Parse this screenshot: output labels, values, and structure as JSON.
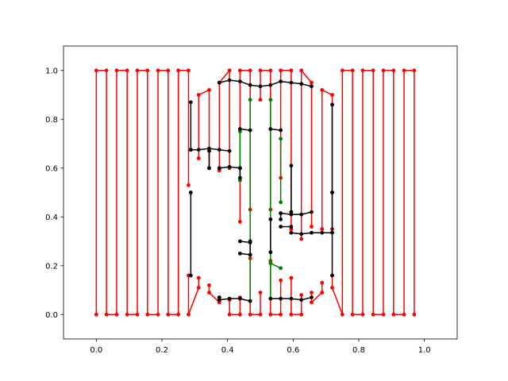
{
  "chart_data": {
    "type": "line",
    "title": "",
    "xlabel": "",
    "ylabel": "",
    "xlim": [
      -0.1,
      1.1
    ],
    "ylim": [
      -0.1,
      1.1
    ],
    "xticks": [
      "0.0",
      "0.2",
      "0.4",
      "0.6",
      "0.8",
      "1.0"
    ],
    "yticks": [
      "0.0",
      "0.2",
      "0.4",
      "0.6",
      "0.8",
      "1.0"
    ],
    "grid": false,
    "legend": "none",
    "marker": "circle",
    "colors": {
      "outer": "#ff0000",
      "inner": "#000000",
      "core": "#008000"
    },
    "outer_x": [
      0.0,
      0.031,
      0.062,
      0.094,
      0.125,
      0.156,
      0.188,
      0.219,
      0.25,
      0.281,
      0.312,
      0.344,
      0.375,
      0.406,
      0.438,
      0.469,
      0.5,
      0.531,
      0.562,
      0.594,
      0.625,
      0.656,
      0.688,
      0.719,
      0.75,
      0.781,
      0.812,
      0.844,
      0.875,
      0.906,
      0.938,
      0.969
    ],
    "outer_bottom": [
      0.0,
      0.0,
      0.0,
      0.0,
      0.0,
      0.0,
      0.0,
      0.0,
      0.0,
      0.0,
      0.11,
      0.09,
      0.05,
      0.0,
      0.0,
      0.0,
      0.0,
      0.0,
      0.0,
      0.0,
      0.0,
      0.05,
      0.09,
      0.11,
      0.0,
      0.0,
      0.0,
      0.0,
      0.0,
      0.0,
      0.0,
      0.0
    ],
    "outer_top": [
      1.0,
      1.0,
      1.0,
      1.0,
      1.0,
      1.0,
      1.0,
      1.0,
      1.0,
      1.0,
      0.9,
      0.92,
      0.95,
      1.0,
      1.0,
      1.0,
      1.0,
      1.0,
      1.0,
      1.0,
      1.0,
      0.95,
      0.92,
      0.9,
      1.0,
      1.0,
      1.0,
      1.0,
      1.0,
      1.0,
      1.0,
      1.0
    ],
    "outer_gaps": [
      [
        0.281,
        0.16,
        0.53
      ],
      [
        0.312,
        0.15,
        0.64
      ],
      [
        0.344,
        0.12,
        0.6
      ],
      [
        0.375,
        0.07,
        0.59
      ],
      [
        0.406,
        0.06,
        0.6
      ],
      [
        0.438,
        0.07,
        0.38
      ],
      [
        0.469,
        0.23,
        0.43
      ],
      [
        0.5,
        0.09,
        0.88
      ],
      [
        0.531,
        0.22,
        0.43
      ],
      [
        0.562,
        0.14,
        0.56
      ],
      [
        0.594,
        0.15,
        0.35
      ],
      [
        0.625,
        0.08,
        0.31
      ],
      [
        0.656,
        0.09,
        0.36
      ],
      [
        0.688,
        0.13,
        0.35
      ],
      [
        0.719,
        0.16,
        0.35
      ]
    ],
    "inner": [
      [
        [
          0.375,
          0.07
        ],
        [
          0.375,
          0.06
        ],
        [
          0.406,
          0.065
        ],
        [
          0.438,
          0.065
        ],
        [
          0.469,
          0.055
        ]
      ],
      [
        [
          0.531,
          0.065
        ],
        [
          0.562,
          0.065
        ],
        [
          0.594,
          0.065
        ],
        [
          0.625,
          0.06
        ],
        [
          0.656,
          0.07
        ]
      ],
      [
        [
          0.375,
          0.95
        ],
        [
          0.406,
          0.96
        ],
        [
          0.438,
          0.955
        ],
        [
          0.469,
          0.94
        ],
        [
          0.5,
          0.935
        ]
      ],
      [
        [
          0.5,
          0.935
        ],
        [
          0.531,
          0.94
        ],
        [
          0.562,
          0.955
        ],
        [
          0.594,
          0.95
        ],
        [
          0.625,
          0.945
        ],
        [
          0.656,
          0.935
        ]
      ],
      [
        [
          0.288,
          0.16
        ],
        [
          0.288,
          0.5
        ]
      ],
      [
        [
          0.288,
          0.675
        ],
        [
          0.288,
          0.87
        ]
      ],
      [
        [
          0.719,
          0.16
        ],
        [
          0.719,
          0.5
        ]
      ],
      [
        [
          0.719,
          0.5
        ],
        [
          0.719,
          0.86
        ]
      ],
      [
        [
          0.288,
          0.675
        ],
        [
          0.312,
          0.675
        ],
        [
          0.344,
          0.68
        ],
        [
          0.375,
          0.675
        ],
        [
          0.406,
          0.67
        ]
      ],
      [
        [
          0.375,
          0.6
        ],
        [
          0.406,
          0.605
        ],
        [
          0.438,
          0.6
        ]
      ],
      [
        [
          0.438,
          0.76
        ],
        [
          0.469,
          0.755
        ]
      ],
      [
        [
          0.531,
          0.76
        ],
        [
          0.562,
          0.755
        ]
      ],
      [
        [
          0.469,
          0.3
        ],
        [
          0.469,
          0.245
        ]
      ],
      [
        [
          0.438,
          0.3
        ],
        [
          0.469,
          0.295
        ]
      ],
      [
        [
          0.438,
          0.25
        ],
        [
          0.469,
          0.245
        ]
      ],
      [
        [
          0.562,
          0.415
        ],
        [
          0.594,
          0.41
        ],
        [
          0.625,
          0.41
        ],
        [
          0.656,
          0.42
        ]
      ],
      [
        [
          0.594,
          0.335
        ],
        [
          0.625,
          0.33
        ],
        [
          0.656,
          0.335
        ],
        [
          0.688,
          0.335
        ],
        [
          0.719,
          0.335
        ]
      ],
      [
        [
          0.562,
          0.36
        ],
        [
          0.594,
          0.36
        ]
      ],
      [
        [
          0.344,
          0.67
        ],
        [
          0.344,
          0.6
        ]
      ],
      [
        [
          0.438,
          0.6
        ],
        [
          0.438,
          0.56
        ]
      ],
      [
        [
          0.594,
          0.61
        ],
        [
          0.594,
          0.42
        ]
      ],
      [
        [
          0.531,
          0.255
        ],
        [
          0.531,
          0.39
        ]
      ],
      [
        [
          0.562,
          0.39
        ],
        [
          0.562,
          0.415
        ]
      ]
    ],
    "core": [
      [
        [
          0.469,
          0.055
        ],
        [
          0.469,
          0.88
        ]
      ],
      [
        [
          0.531,
          0.065
        ],
        [
          0.531,
          0.88
        ]
      ],
      [
        [
          0.438,
          0.55
        ],
        [
          0.438,
          0.75
        ]
      ],
      [
        [
          0.562,
          0.46
        ],
        [
          0.562,
          0.72
        ]
      ],
      [
        [
          0.531,
          0.21
        ],
        [
          0.562,
          0.19
        ]
      ]
    ]
  }
}
